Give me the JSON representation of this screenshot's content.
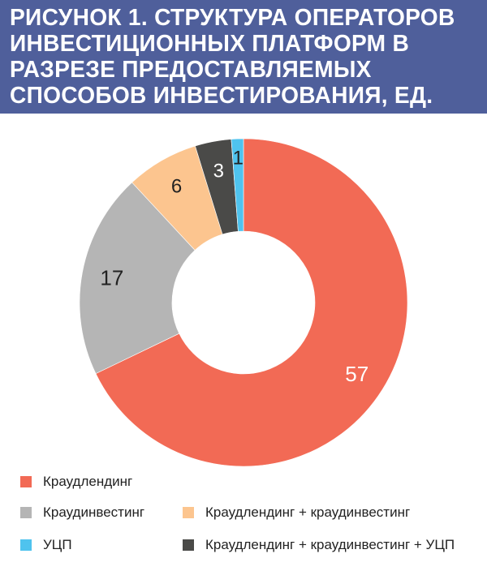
{
  "title": "РИСУНОК 1. СТРУКТУРА ОПЕРАТОРОВ ИНВЕСТИЦИОННЫХ ПЛАТФОРМ В РАЗРЕЗЕ ПРЕДОСТАВЛЯЕМЫХ СПОСОБОВ ИНВЕСТИРОВАНИЯ, ЕД.",
  "colors": {
    "header_bg": "#4f5f9b",
    "crowdlending": "#f26a55",
    "crowdinvesting": "#b5b5b5",
    "mixed": "#fcc58f",
    "mixed_ucp": "#4a4a48",
    "ucp": "#4fc3ee"
  },
  "chart_data": {
    "type": "pie",
    "donut": true,
    "title": "РИСУНОК 1. СТРУКТУРА ОПЕРАТОРОВ ИНВЕСТИЦИОННЫХ ПЛАТФОРМ В РАЗРЕЗЕ ПРЕДОСТАВЛЯЕМЫХ СПОСОБОВ ИНВЕСТИРОВАНИЯ, ЕД.",
    "slices": [
      {
        "name": "Краудлендинг",
        "value": 57,
        "label": "57",
        "color": "#f26a55",
        "label_color": "#ffffff"
      },
      {
        "name": "Краудинвестинг",
        "value": 17,
        "label": "17",
        "color": "#b5b5b5",
        "label_color": "#222222"
      },
      {
        "name": "Краудлендинг + краудинвестинг",
        "value": 6,
        "label": "6",
        "color": "#fcc58f",
        "label_color": "#222222"
      },
      {
        "name": "Краудлендинг + краудинвестинг + УЦП",
        "value": 3,
        "label": "3",
        "color": "#4a4a48",
        "label_color": "#ffffff"
      },
      {
        "name": "УЦП",
        "value": 1,
        "label": "1",
        "color": "#4fc3ee",
        "label_color": "#222222"
      }
    ],
    "legend": {
      "position": "bottom",
      "rows": [
        [
          "Краудлендинг"
        ],
        [
          "Краудинвестинг",
          "Краудлендинг + краудинвестинг"
        ],
        [
          "УЦП",
          "Краудлендинг + краудинвестинг + УЦП"
        ]
      ]
    }
  }
}
